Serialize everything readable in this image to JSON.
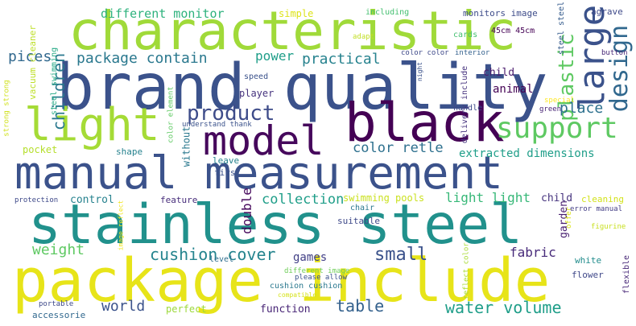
{
  "words": [
    {
      "text": "characteristic",
      "color": "#a0da39",
      "id": "characteristic"
    },
    {
      "text": "brand quality",
      "color": "#3b528b",
      "id": "brand-quality"
    },
    {
      "text": "light",
      "color": "#a5db36",
      "id": "light"
    },
    {
      "text": "black",
      "color": "#440154",
      "id": "black"
    },
    {
      "text": "model",
      "color": "#46085c",
      "id": "model"
    },
    {
      "text": "manual measurement",
      "color": "#3b528b",
      "id": "manual-measurement"
    },
    {
      "text": "stainless steel",
      "color": "#21918c",
      "id": "stainless-steel"
    },
    {
      "text": "package include",
      "color": "#e7e419",
      "id": "package-include"
    },
    {
      "text": "large",
      "color": "#3b528b",
      "id": "large"
    },
    {
      "text": "support",
      "color": "#5ec962",
      "id": "support"
    },
    {
      "text": "product",
      "color": "#3e4c8a",
      "id": "product"
    },
    {
      "text": "design",
      "color": "#31688e",
      "id": "design"
    },
    {
      "text": "plastic",
      "color": "#5ec962",
      "id": "plastic"
    },
    {
      "text": "package contain",
      "color": "#2a788e",
      "id": "package-contain"
    },
    {
      "text": "practical",
      "color": "#26828e",
      "id": "practical"
    },
    {
      "text": "power",
      "color": "#1f9e89",
      "id": "power"
    },
    {
      "text": "children",
      "color": "#2a788e",
      "id": "children"
    },
    {
      "text": "pices",
      "color": "#31688e",
      "id": "pices"
    },
    {
      "text": "different monitor",
      "color": "#2db27d",
      "id": "different-monitor"
    },
    {
      "text": "simple",
      "color": "#dde318",
      "id": "simple"
    },
    {
      "text": "including",
      "color": "#44bf70",
      "id": "including"
    },
    {
      "text": "monitors image",
      "color": "#3e4c8a",
      "id": "monitors-image"
    },
    {
      "text": "agrave",
      "color": "#3e4989",
      "id": "agrave"
    },
    {
      "text": "adapt",
      "color": "#c2df23",
      "id": "adapt"
    },
    {
      "text": "cards",
      "color": "#44bf70",
      "id": "cards"
    },
    {
      "text": "45cm 45cm",
      "color": "#440154",
      "id": "45cm-45cm"
    },
    {
      "text": "steel steel",
      "color": "#365c8d",
      "id": "steel-steel"
    },
    {
      "text": "button",
      "color": "#482878",
      "id": "button"
    },
    {
      "text": "color color",
      "color": "#3e4989",
      "id": "color-color"
    },
    {
      "text": "interior",
      "color": "#34618d",
      "id": "interior"
    },
    {
      "text": "child",
      "color": "#481a6c",
      "id": "child"
    },
    {
      "text": "animal",
      "color": "#440154",
      "id": "animal"
    },
    {
      "text": "place",
      "color": "#2d708e",
      "id": "place"
    },
    {
      "text": "color retle",
      "color": "#2d708e",
      "id": "color-retle"
    },
    {
      "text": "extracted dimensions",
      "color": "#1f9e89",
      "id": "extracted-dimensions"
    },
    {
      "text": "vacuum cleaner",
      "color": "#bddf26",
      "id": "vacuum-cleaner"
    },
    {
      "text": "steel swimming",
      "color": "#22a884",
      "id": "steel-swimming"
    },
    {
      "text": "strong strong",
      "color": "#d0e11c",
      "id": "strong-strong"
    },
    {
      "text": "color element",
      "color": "#5ec962",
      "id": "color-element"
    },
    {
      "text": "player",
      "color": "#46337e",
      "id": "player"
    },
    {
      "text": "speed",
      "color": "#3b528b",
      "id": "speed"
    },
    {
      "text": "night",
      "color": "#3b528b",
      "id": "night"
    },
    {
      "text": "delivery include",
      "color": "#46337e",
      "id": "delivery-include"
    },
    {
      "text": "handle",
      "color": "#3e4989",
      "id": "handle"
    },
    {
      "text": "special",
      "color": "#fde725",
      "id": "special"
    },
    {
      "text": "green",
      "color": "#482475",
      "id": "green"
    },
    {
      "text": "understand thank",
      "color": "#3b528b",
      "id": "understand-thank"
    },
    {
      "text": "pocket",
      "color": "#b5de2b",
      "id": "pocket"
    },
    {
      "text": "shape",
      "color": "#26828e",
      "id": "shape"
    },
    {
      "text": "without",
      "color": "#2a788e",
      "id": "without"
    },
    {
      "text": "leave",
      "color": "#26828e",
      "id": "leave"
    },
    {
      "text": "first",
      "color": "#3b528b",
      "id": "first"
    },
    {
      "text": "control",
      "color": "#26828e",
      "id": "control"
    },
    {
      "text": "feature",
      "color": "#472d7b",
      "id": "feature"
    },
    {
      "text": "protection",
      "color": "#3e4989",
      "id": "protection"
    },
    {
      "text": "collection",
      "color": "#1f9e89",
      "id": "collection"
    },
    {
      "text": "swimming pools",
      "color": "#cae11f",
      "id": "swimming-pools"
    },
    {
      "text": "light light",
      "color": "#37b878",
      "id": "light-light"
    },
    {
      "text": "child",
      "color": "#46337e",
      "id": "child-2"
    },
    {
      "text": "cleaning",
      "color": "#d2e21b",
      "id": "cleaning"
    },
    {
      "text": "error manual",
      "color": "#433e85",
      "id": "error-manual"
    },
    {
      "text": "double",
      "color": "#46085c",
      "id": "double"
    },
    {
      "text": "chair",
      "color": "#2a788e",
      "id": "chair"
    },
    {
      "text": "suitable",
      "color": "#3e4989",
      "id": "suitable"
    },
    {
      "text": "garden",
      "color": "#481f70",
      "id": "garden"
    },
    {
      "text": "figurine",
      "color": "#c8e020",
      "id": "figurine"
    },
    {
      "text": "offer",
      "color": "#dae319",
      "id": "offer"
    },
    {
      "text": "image reflect",
      "color": "#f1e51d",
      "id": "image-reflect"
    },
    {
      "text": "weight",
      "color": "#5ec962",
      "id": "weight"
    },
    {
      "text": "cushion cover",
      "color": "#25848e",
      "id": "cushion-cover"
    },
    {
      "text": "small",
      "color": "#3b528b",
      "id": "small"
    },
    {
      "text": "games",
      "color": "#424086",
      "id": "games"
    },
    {
      "text": "fabric",
      "color": "#472a7a",
      "id": "fabric"
    },
    {
      "text": "white",
      "color": "#228d8d",
      "id": "white"
    },
    {
      "text": "level",
      "color": "#2e6e8e",
      "id": "level"
    },
    {
      "text": "different image",
      "color": "#6ece58",
      "id": "different-image"
    },
    {
      "text": "reflect color",
      "color": "#a8db34",
      "id": "reflect-color"
    },
    {
      "text": "flower",
      "color": "#3f4889",
      "id": "flower"
    },
    {
      "text": "flexible",
      "color": "#482878",
      "id": "flexible"
    },
    {
      "text": "please allow",
      "color": "#3b528b",
      "id": "please-allow"
    },
    {
      "text": "cushion cushion",
      "color": "#2a788e",
      "id": "cushion-cushion"
    },
    {
      "text": "compatible",
      "color": "#d5e21a",
      "id": "compatible"
    },
    {
      "text": "portable",
      "color": "#3e4989",
      "id": "portable"
    },
    {
      "text": "world",
      "color": "#3b528b",
      "id": "world"
    },
    {
      "text": "perfect",
      "color": "#9dd93b",
      "id": "perfect"
    },
    {
      "text": "function",
      "color": "#482576",
      "id": "function"
    },
    {
      "text": "table",
      "color": "#34618d",
      "id": "table"
    },
    {
      "text": "water volume",
      "color": "#1f9e89",
      "id": "water-volume"
    },
    {
      "text": "accessorie",
      "color": "#31688e",
      "id": "accessorie"
    }
  ]
}
